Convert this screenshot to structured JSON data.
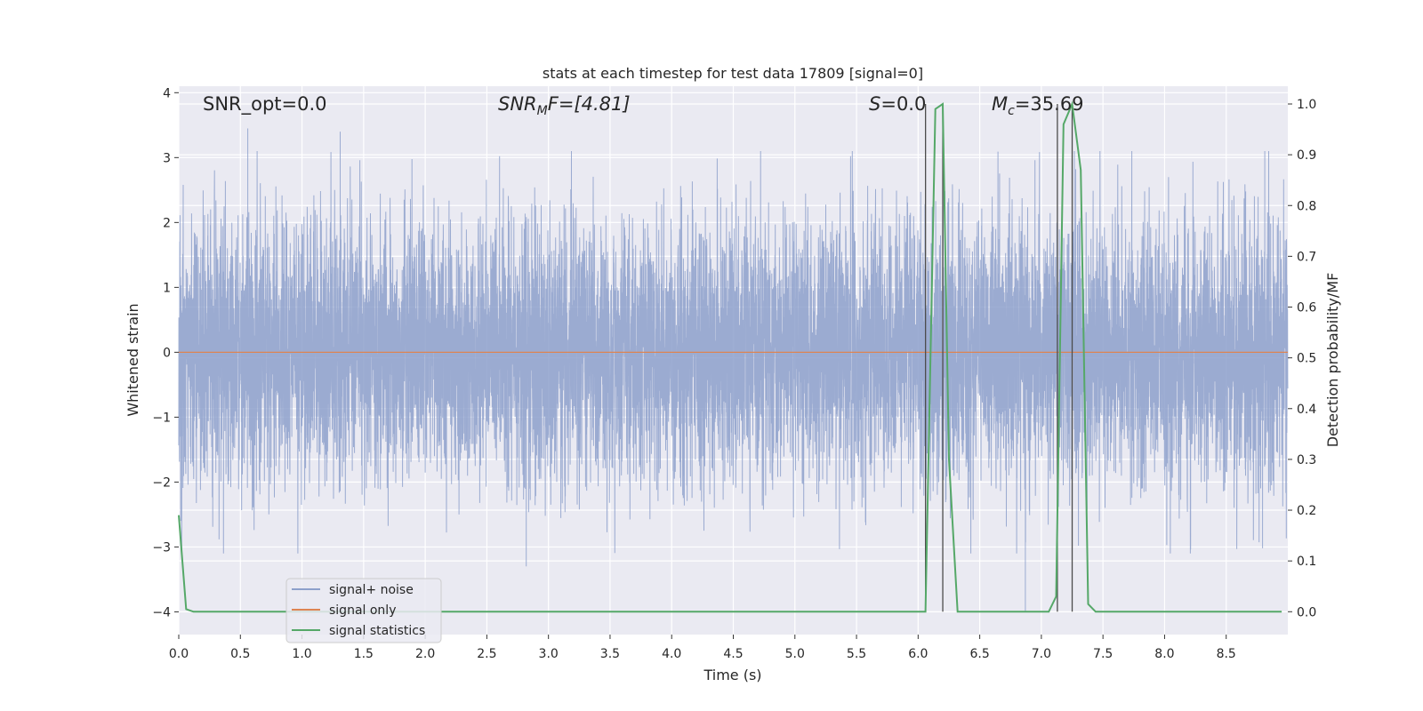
{
  "chart_data": {
    "type": "line",
    "title": "stats at each timestep for test data 17809 [signal=0]",
    "xlabel": "Time (s)",
    "ylabel_left": "Whitened strain",
    "ylabel_right": "Detection probability/MF",
    "xlim": [
      0,
      9.0
    ],
    "ylim_left": [
      -4.35,
      4.1
    ],
    "ylim_right": [
      -0.045,
      1.035
    ],
    "x_ticks": [
      "0.0",
      "0.5",
      "1.0",
      "1.5",
      "2.0",
      "2.5",
      "3.0",
      "3.5",
      "4.0",
      "4.5",
      "5.0",
      "5.5",
      "6.0",
      "6.5",
      "7.0",
      "7.5",
      "8.0",
      "8.5"
    ],
    "y_left_ticks": [
      "4",
      "3",
      "2",
      "1",
      "0",
      "−1",
      "−2",
      "−3",
      "−4"
    ],
    "y_right_ticks": [
      "1.0",
      "0.9",
      "0.8",
      "0.7",
      "0.6",
      "0.5",
      "0.4",
      "0.3",
      "0.2",
      "0.1",
      "0.0"
    ],
    "grid": true,
    "legend_position": "lower-left",
    "annotations": {
      "snr_opt": "SNR_opt=0.0",
      "snr_mf_sym": "SNR",
      "snr_mf_sub": "M",
      "snr_mf_rest": "F=[4.81]",
      "s_sym": "S",
      "s_rest": "=0.0",
      "mc_sym": "M",
      "mc_sub": "c",
      "mc_rest": "=35.69"
    },
    "series": [
      {
        "name": "signal+ noise",
        "axis": "left",
        "color": "#8da0cb",
        "description_of_values": "whitened noise, approx. Gaussian, range about -3.3 to 3.5",
        "sample_rate_hz": 2048,
        "peak_values": [
          {
            "x": 0.56,
            "y": 3.45
          },
          {
            "x": 1.31,
            "y": 3.4
          },
          {
            "x": 2.82,
            "y": -3.3
          },
          {
            "x": 6.87,
            "y": -4.0
          }
        ]
      },
      {
        "name": "signal only",
        "axis": "left",
        "color": "#dd8452",
        "x": [
          0,
          9.0
        ],
        "y": [
          0,
          0
        ]
      },
      {
        "name": "signal statistics",
        "axis": "right",
        "color": "#55a868",
        "x": [
          0.0,
          0.06,
          0.12,
          0.5,
          1.0,
          2.0,
          3.0,
          4.0,
          5.0,
          6.0,
          6.06,
          6.1,
          6.14,
          6.2,
          6.25,
          6.32,
          6.4,
          6.5,
          7.0,
          7.06,
          7.12,
          7.18,
          7.25,
          7.32,
          7.38,
          7.44,
          7.5,
          8.0,
          8.5,
          8.95
        ],
        "y": [
          0.19,
          0.005,
          0.0,
          0.0,
          0.0,
          0.0,
          0.0,
          0.0,
          0.0,
          0.0,
          0.0,
          0.5,
          0.99,
          1.0,
          0.3,
          0.0,
          0.0,
          0.0,
          0.0,
          0.0,
          0.03,
          0.96,
          1.0,
          0.87,
          0.015,
          0.0,
          0.0,
          0.0,
          0.0,
          0.0
        ]
      }
    ],
    "vertical_lines": [
      6.06,
      6.2,
      7.13,
      7.25
    ],
    "vertical_line_color": "#4c4c4c"
  }
}
